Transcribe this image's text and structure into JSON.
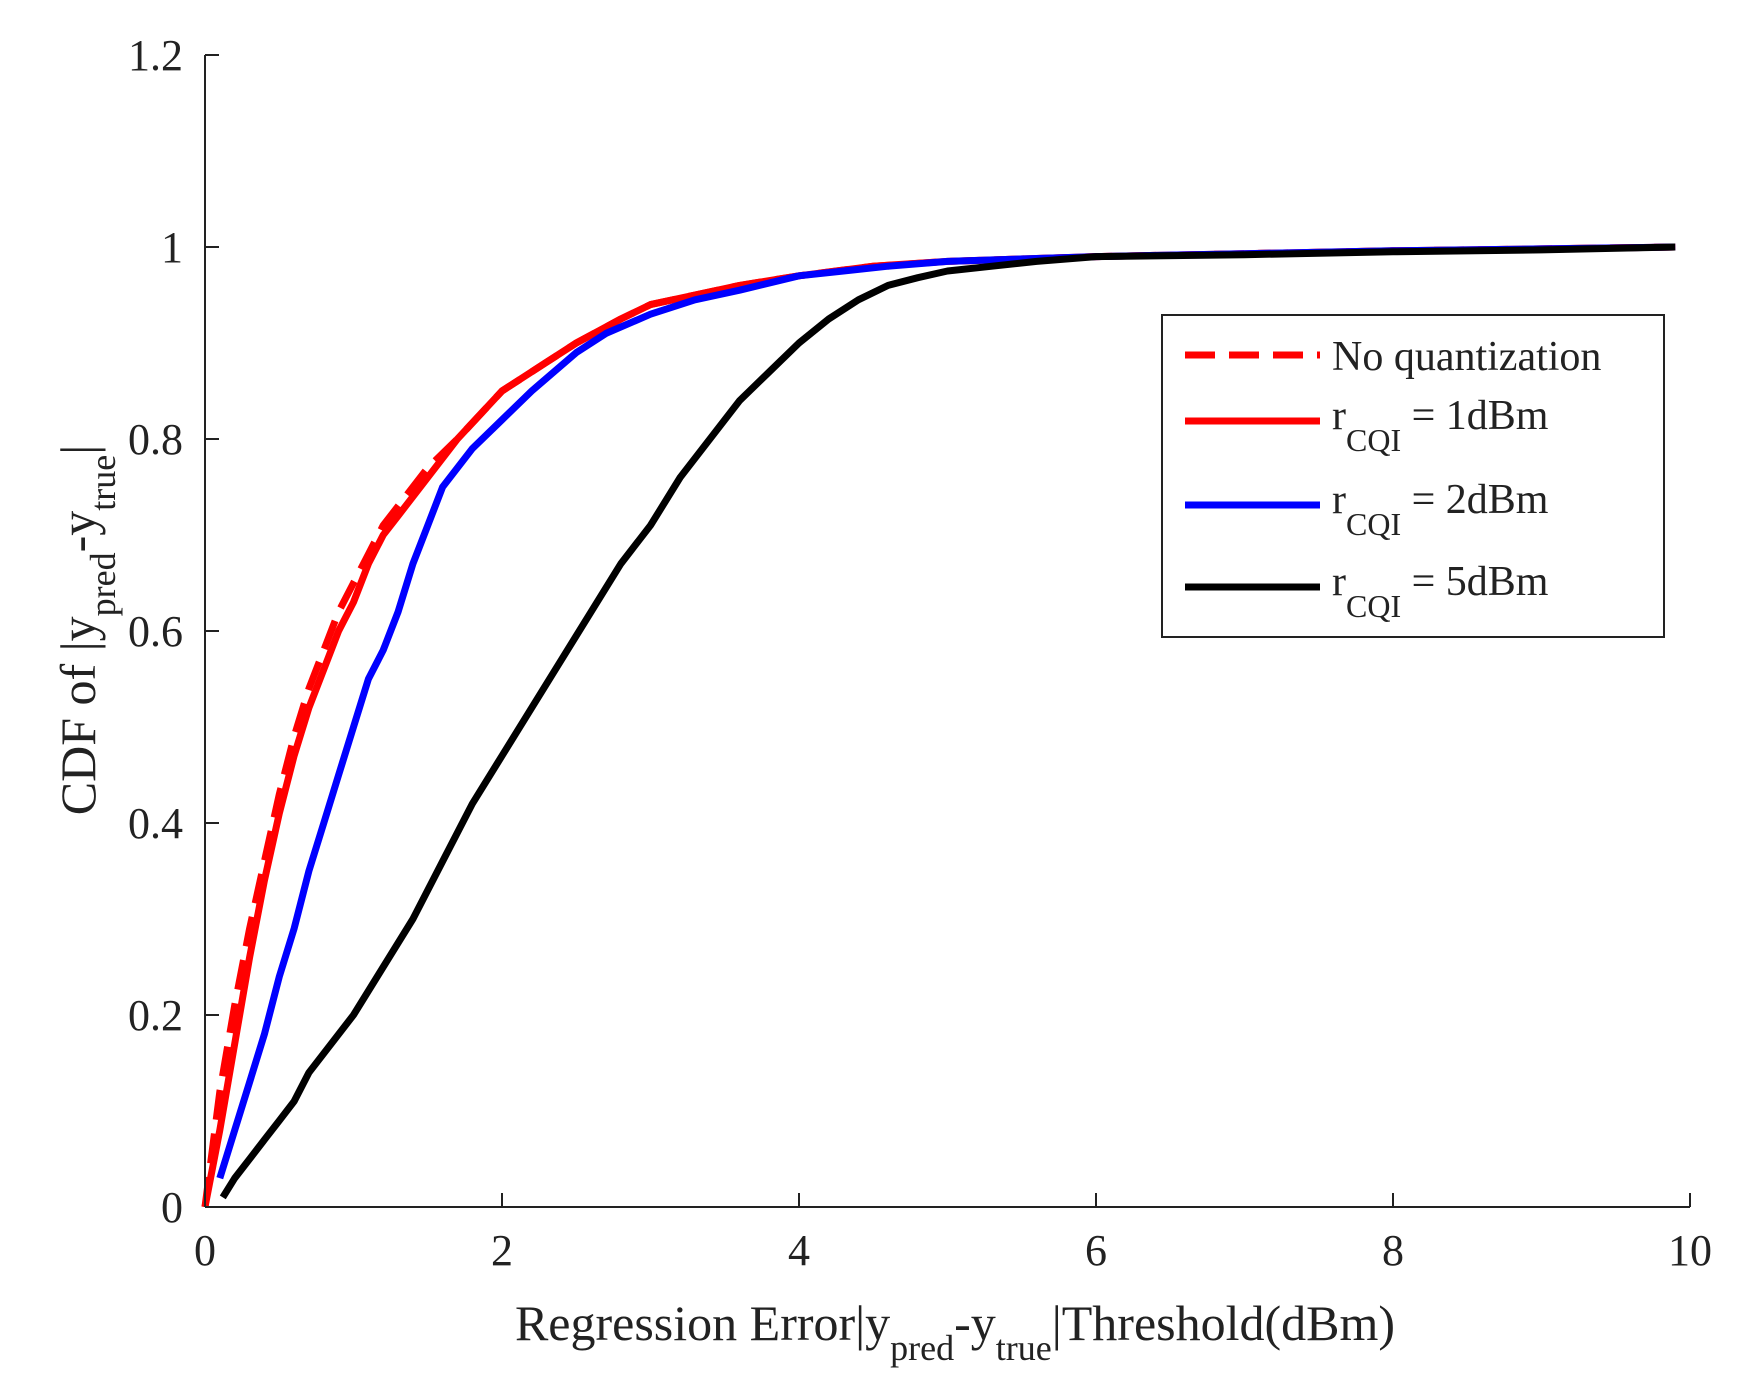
{
  "chart_data": {
    "type": "line",
    "title": "",
    "xlabel": {
      "pre": "Regression Error|y",
      "sub1": "pred",
      "mid": "-y",
      "sub2": "true",
      "post": "|Threshold(dBm)"
    },
    "ylabel": {
      "pre": "CDF of |y",
      "sub1": "pred",
      "mid": "-y",
      "sub2": "true",
      "post": "|"
    },
    "xlim": [
      0,
      10
    ],
    "ylim": [
      0,
      1.2
    ],
    "xticks": [
      "0",
      "2",
      "4",
      "6",
      "8",
      "10"
    ],
    "yticks": [
      "0",
      "0.2",
      "0.4",
      "0.6",
      "0.8",
      "1",
      "1.2"
    ],
    "grid": false,
    "legend_position": "upper-right",
    "series": [
      {
        "name": "No quantization",
        "label": {
          "pre": "No quantization"
        },
        "color": "#ff0000",
        "style": "dashed",
        "x": [
          0,
          0.05,
          0.1,
          0.2,
          0.3,
          0.4,
          0.5,
          0.6,
          0.7,
          0.8,
          0.9,
          1.0,
          1.1,
          1.2,
          1.3,
          1.5,
          1.7,
          2.0,
          2.3,
          2.5,
          2.8,
          3.0,
          3.3,
          3.6,
          4.0,
          4.5,
          5.0,
          6.0,
          7.0,
          8.0,
          9.0,
          9.9
        ],
        "y": [
          0,
          0.06,
          0.12,
          0.21,
          0.29,
          0.36,
          0.43,
          0.49,
          0.54,
          0.58,
          0.62,
          0.65,
          0.68,
          0.71,
          0.73,
          0.77,
          0.8,
          0.85,
          0.88,
          0.9,
          0.925,
          0.94,
          0.95,
          0.96,
          0.97,
          0.98,
          0.985,
          0.99,
          0.993,
          0.996,
          0.998,
          1.0
        ]
      },
      {
        "name": "rCQI = 1dBm",
        "label": {
          "pre": "r",
          "sub": "CQI",
          "post": " = 1dBm"
        },
        "color": "#ff0000",
        "style": "solid",
        "x": [
          0,
          0.1,
          0.2,
          0.3,
          0.4,
          0.5,
          0.6,
          0.7,
          0.8,
          0.9,
          1.0,
          1.1,
          1.2,
          1.3,
          1.5,
          1.7,
          2.0,
          2.3,
          2.5,
          2.8,
          3.0,
          3.3,
          3.6,
          4.0,
          4.5,
          5.0,
          6.0,
          7.0,
          8.0,
          9.0,
          9.9
        ],
        "y": [
          0,
          0.08,
          0.17,
          0.26,
          0.34,
          0.41,
          0.47,
          0.52,
          0.56,
          0.6,
          0.63,
          0.67,
          0.7,
          0.72,
          0.76,
          0.8,
          0.85,
          0.88,
          0.9,
          0.925,
          0.94,
          0.95,
          0.96,
          0.97,
          0.98,
          0.985,
          0.99,
          0.993,
          0.996,
          0.998,
          1.0
        ]
      },
      {
        "name": "rCQI = 2dBm",
        "label": {
          "pre": "r",
          "sub": "CQI",
          "post": " = 2dBm"
        },
        "color": "#0000ff",
        "style": "solid",
        "x": [
          0.1,
          0.2,
          0.3,
          0.4,
          0.5,
          0.6,
          0.7,
          0.8,
          0.9,
          1.0,
          1.1,
          1.2,
          1.3,
          1.4,
          1.5,
          1.6,
          1.8,
          2.0,
          2.2,
          2.5,
          2.7,
          3.0,
          3.3,
          3.6,
          4.0,
          4.3,
          4.6,
          5.0,
          6.0,
          7.0,
          8.0,
          9.0,
          9.9
        ],
        "y": [
          0.03,
          0.08,
          0.13,
          0.18,
          0.24,
          0.29,
          0.35,
          0.4,
          0.45,
          0.5,
          0.55,
          0.58,
          0.62,
          0.67,
          0.71,
          0.75,
          0.79,
          0.82,
          0.85,
          0.89,
          0.91,
          0.93,
          0.945,
          0.955,
          0.97,
          0.975,
          0.98,
          0.985,
          0.99,
          0.993,
          0.996,
          0.998,
          1.0
        ]
      },
      {
        "name": "rCQI = 5dBm",
        "label": {
          "pre": "r",
          "sub": "CQI",
          "post": " = 5dBm"
        },
        "color": "#000000",
        "style": "solid",
        "x": [
          0.12,
          0.2,
          0.3,
          0.4,
          0.5,
          0.6,
          0.7,
          0.8,
          0.9,
          1.0,
          1.2,
          1.4,
          1.6,
          1.8,
          2.0,
          2.2,
          2.4,
          2.6,
          2.8,
          3.0,
          3.2,
          3.4,
          3.6,
          3.8,
          4.0,
          4.2,
          4.4,
          4.6,
          4.8,
          5.0,
          5.3,
          5.6,
          6.0,
          7.0,
          8.0,
          9.0,
          9.9
        ],
        "y": [
          0.01,
          0.03,
          0.05,
          0.07,
          0.09,
          0.11,
          0.14,
          0.16,
          0.18,
          0.2,
          0.25,
          0.3,
          0.36,
          0.42,
          0.47,
          0.52,
          0.57,
          0.62,
          0.67,
          0.71,
          0.76,
          0.8,
          0.84,
          0.87,
          0.9,
          0.925,
          0.945,
          0.96,
          0.968,
          0.975,
          0.98,
          0.985,
          0.99,
          0.992,
          0.995,
          0.997,
          1.0
        ]
      }
    ]
  }
}
